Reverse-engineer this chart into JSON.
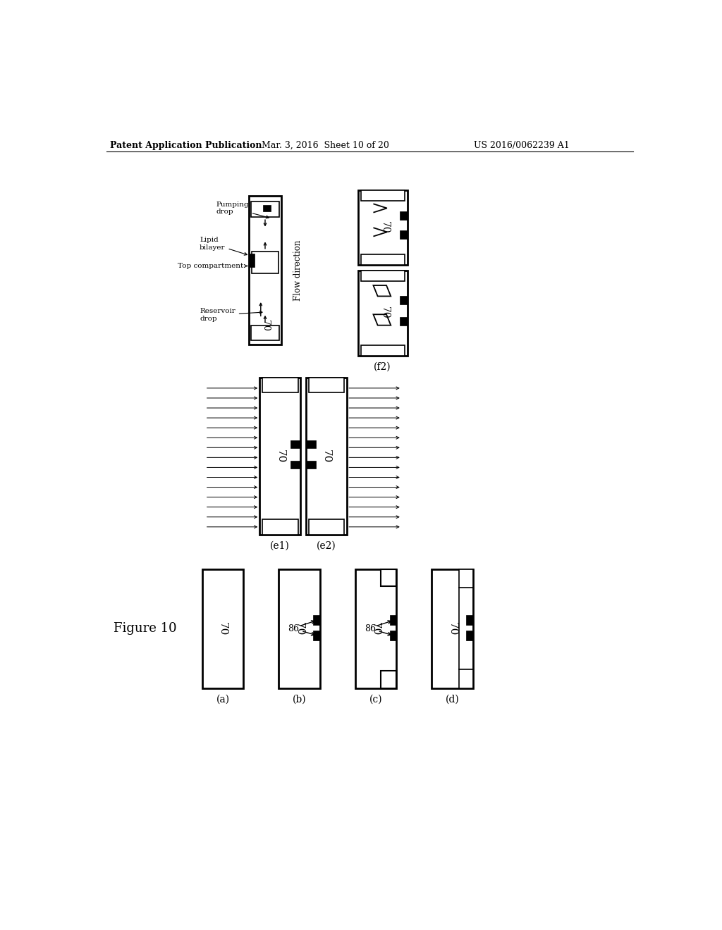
{
  "header_left": "Patent Application Publication",
  "header_mid": "Mar. 3, 2016  Sheet 10 of 20",
  "header_right": "US 2016/0062239 A1",
  "figure_label": "Figure 10",
  "bg_color": "#ffffff",
  "line_color": "#000000"
}
